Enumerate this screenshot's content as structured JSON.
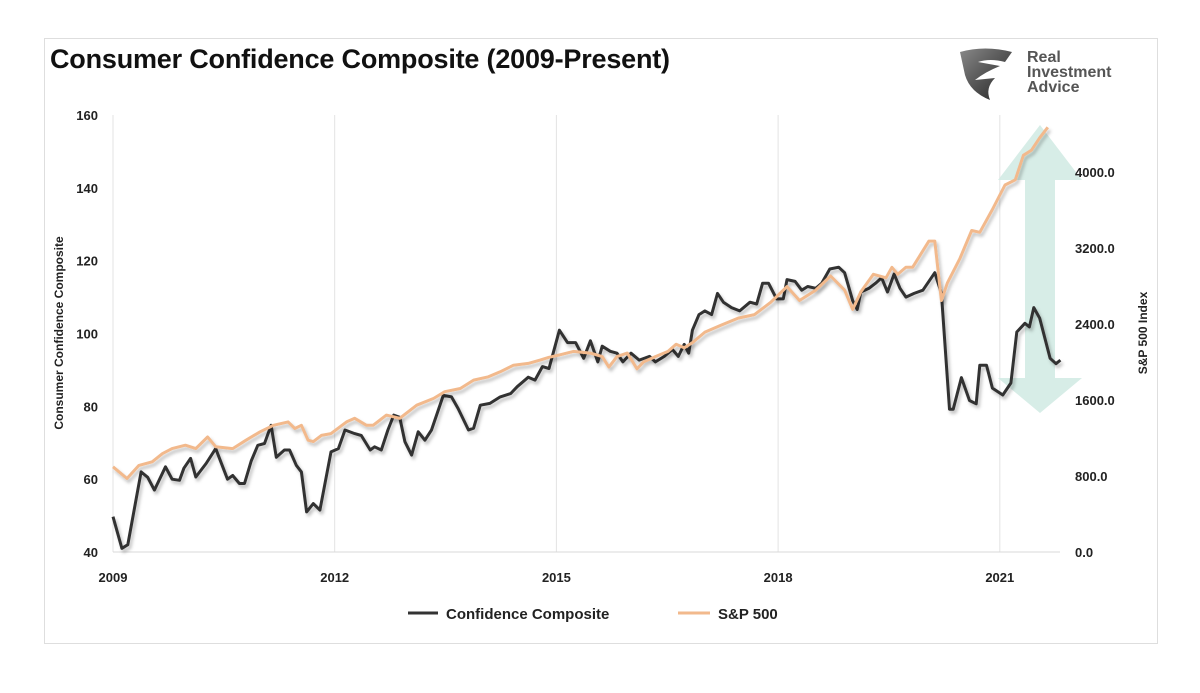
{
  "chart_data": {
    "type": "line",
    "title": "Consumer Confidence Composite (2009-Present)",
    "ylabel": "Consumer Confidence Composite",
    "y2label": "S&P 500 Index",
    "xlim": [
      2009,
      2021.85
    ],
    "ylim": [
      40,
      160
    ],
    "y2lim": [
      0,
      4600
    ],
    "x_ticks": [
      "2009",
      "2012",
      "2015",
      "2018",
      "2021"
    ],
    "y_ticks": [
      "40",
      "60",
      "80",
      "100",
      "120",
      "140",
      "160"
    ],
    "y2_ticks": [
      "0.0",
      "800.0",
      "1600.0",
      "2400.0",
      "3200.0",
      "4000.0"
    ],
    "grid": "vertical",
    "legend_position": "bottom",
    "series": [
      {
        "name": "Confidence Composite",
        "axis": "left",
        "color": "#333333",
        "x": [
          2009.0,
          2009.12,
          2009.2,
          2009.38,
          2009.47,
          2009.56,
          2009.71,
          2009.8,
          2009.9,
          2009.96,
          2010.05,
          2010.12,
          2010.26,
          2010.39,
          2010.55,
          2010.62,
          2010.71,
          2010.78,
          2010.87,
          2010.96,
          2011.05,
          2011.14,
          2011.21,
          2011.32,
          2011.39,
          2011.48,
          2011.55,
          2011.62,
          2011.71,
          2011.8,
          2011.95,
          2012.05,
          2012.14,
          2012.27,
          2012.36,
          2012.48,
          2012.54,
          2012.63,
          2012.72,
          2012.8,
          2012.88,
          2012.95,
          2013.04,
          2013.13,
          2013.22,
          2013.31,
          2013.47,
          2013.58,
          2013.67,
          2013.81,
          2013.88,
          2013.97,
          2014.1,
          2014.24,
          2014.38,
          2014.47,
          2014.62,
          2014.71,
          2014.81,
          2014.9,
          2015.04,
          2015.15,
          2015.26,
          2015.37,
          2015.46,
          2015.56,
          2015.62,
          2015.73,
          2015.82,
          2015.9,
          2016.01,
          2016.12,
          2016.26,
          2016.34,
          2016.46,
          2016.57,
          2016.65,
          2016.73,
          2016.79,
          2016.84,
          2016.93,
          2017.01,
          2017.1,
          2017.18,
          2017.26,
          2017.37,
          2017.48,
          2017.62,
          2017.71,
          2017.79,
          2017.87,
          2017.98,
          2018.07,
          2018.12,
          2018.23,
          2018.32,
          2018.4,
          2018.51,
          2018.59,
          2018.7,
          2018.82,
          2018.9,
          2019.01,
          2019.07,
          2019.12,
          2019.23,
          2019.32,
          2019.4,
          2019.48,
          2019.57,
          2019.65,
          2019.73,
          2019.84,
          2019.96,
          2020.12,
          2020.21,
          2020.32,
          2020.37,
          2020.48,
          2020.59,
          2020.68,
          2020.73,
          2020.82,
          2020.9,
          2021.04,
          2021.15,
          2021.23,
          2021.34,
          2021.4,
          2021.46,
          2021.54,
          2021.68,
          2021.76,
          2021.82
        ],
        "values": [
          49.7,
          41,
          42,
          62,
          60.5,
          57,
          63.4,
          60,
          59.7,
          63,
          65.7,
          60.6,
          64.3,
          68.4,
          60,
          61,
          58.8,
          58.8,
          65,
          69.3,
          69.8,
          74.8,
          66,
          68,
          68,
          63.8,
          62,
          51,
          53.3,
          51.5,
          67.5,
          68.4,
          73.5,
          72.5,
          72,
          68,
          68.9,
          68,
          73.5,
          77.6,
          77,
          70.3,
          66.6,
          73,
          70.7,
          73.5,
          83,
          82.6,
          79.4,
          73.5,
          74,
          80.3,
          80.8,
          82.6,
          83.5,
          85.4,
          88,
          87.2,
          90.9,
          90.4,
          100.9,
          97.5,
          97.5,
          93.2,
          98,
          92.2,
          96.5,
          95.1,
          94.6,
          92.2,
          94.6,
          92.7,
          93.7,
          92.2,
          93.7,
          95.6,
          93.7,
          97,
          94.6,
          100.9,
          105.2,
          106.2,
          105.2,
          111,
          108.6,
          107.1,
          106.2,
          108.6,
          108.1,
          113.8,
          113.8,
          109.5,
          109.5,
          114.8,
          114.3,
          111.9,
          112.9,
          112.4,
          113.8,
          117.7,
          118.2,
          116.7,
          109,
          106.6,
          111.4,
          112.4,
          113.8,
          115.3,
          111.4,
          116.3,
          112.4,
          110,
          111,
          111.9,
          116.7,
          111,
          79.2,
          79.2,
          87.9,
          81.6,
          80.7,
          91.3,
          91.3,
          85,
          83.1,
          86.4,
          100.4,
          102.8,
          101.8,
          107.1,
          104.2,
          93.2,
          91.7,
          92.7
        ]
      },
      {
        "name": "S&P 500",
        "axis": "right",
        "color": "#f2b98c",
        "x": [
          2009.0,
          2009.19,
          2009.35,
          2009.53,
          2009.67,
          2009.8,
          2009.98,
          2010.12,
          2010.28,
          2010.39,
          2010.62,
          2010.8,
          2010.99,
          2011.17,
          2011.37,
          2011.46,
          2011.55,
          2011.64,
          2011.71,
          2011.82,
          2011.95,
          2012.16,
          2012.27,
          2012.43,
          2012.52,
          2012.7,
          2012.88,
          2013.11,
          2013.34,
          2013.49,
          2013.7,
          2013.88,
          2014.08,
          2014.24,
          2014.42,
          2014.62,
          2014.78,
          2014.9,
          2015.04,
          2015.23,
          2015.46,
          2015.62,
          2015.71,
          2015.82,
          2015.96,
          2016.09,
          2016.18,
          2016.34,
          2016.51,
          2016.62,
          2016.73,
          2016.84,
          2017.01,
          2017.23,
          2017.46,
          2017.68,
          2017.9,
          2018.12,
          2018.29,
          2018.51,
          2018.71,
          2018.9,
          2019.01,
          2019.12,
          2019.29,
          2019.46,
          2019.54,
          2019.62,
          2019.73,
          2019.82,
          2020.04,
          2020.12,
          2020.21,
          2020.29,
          2020.46,
          2020.62,
          2020.73,
          2020.9,
          2021.07,
          2021.21,
          2021.32,
          2021.43,
          2021.54,
          2021.65
        ],
        "values": [
          897,
          774,
          912,
          950,
          1036,
          1088,
          1124,
          1088,
          1211,
          1108,
          1088,
          1177,
          1265,
          1334,
          1369,
          1300,
          1334,
          1177,
          1162,
          1227,
          1246,
          1369,
          1407,
          1334,
          1334,
          1441,
          1407,
          1545,
          1617,
          1687,
          1721,
          1809,
          1844,
          1897,
          1966,
          1985,
          2020,
          2050,
          2075,
          2112,
          2094,
          2057,
          1946,
          2057,
          2094,
          1928,
          2001,
          2057,
          2112,
          2186,
          2149,
          2204,
          2315,
          2388,
          2462,
          2499,
          2628,
          2794,
          2647,
          2757,
          2905,
          2757,
          2554,
          2739,
          2923,
          2886,
          2997,
          2923,
          2997,
          2997,
          3273,
          3273,
          2647,
          2831,
          3089,
          3384,
          3365,
          3605,
          3863,
          3918,
          4176,
          4231,
          4360,
          4471
        ]
      }
    ]
  },
  "logo": {
    "text_lines": [
      "Real",
      "Investment",
      "Advice"
    ]
  },
  "annotation": {
    "arrow_color": "#d3ebe4"
  }
}
